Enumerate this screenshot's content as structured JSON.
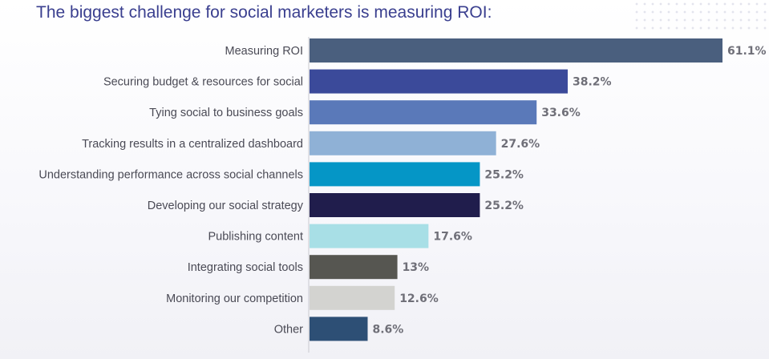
{
  "title": "The biggest challenge for social marketers is measuring ROI:",
  "chart_data": {
    "type": "bar",
    "orientation": "horizontal",
    "title": "The biggest challenge for social marketers is measuring ROI:",
    "xlabel": "",
    "ylabel": "",
    "xlim": [
      0,
      61.1
    ],
    "grid": false,
    "categories": [
      "Measuring ROI",
      "Securing budget & resources for social",
      "Tying social to business goals",
      "Tracking results in a centralized dashboard",
      "Understanding performance across social channels",
      "Developing our social strategy",
      "Publishing content",
      "Integrating social tools",
      "Monitoring our competition",
      "Other"
    ],
    "values": [
      61.1,
      38.2,
      33.6,
      27.6,
      25.2,
      25.2,
      17.6,
      13,
      12.6,
      8.6
    ],
    "value_labels": [
      "61.1%",
      "38.2%",
      "33.6%",
      "27.6%",
      "25.2%",
      "25.2%",
      "17.6%",
      "13%",
      "12.6%",
      "8.6%"
    ],
    "colors": [
      "#4a5f7e",
      "#3b4a9a",
      "#5a79b9",
      "#8fb1d6",
      "#0596c6",
      "#201d4c",
      "#a8dfe6",
      "#565651",
      "#d3d3d0",
      "#2d4f75"
    ]
  }
}
